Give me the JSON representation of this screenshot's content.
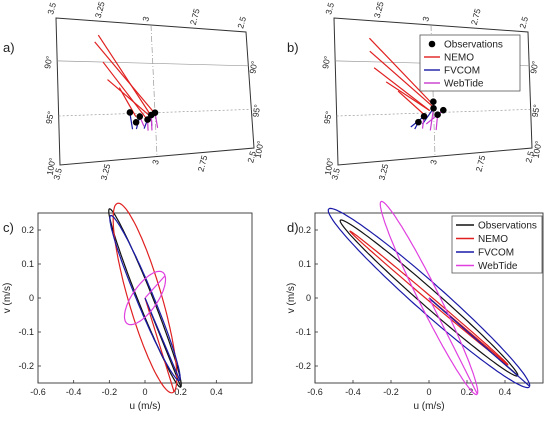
{
  "chart_data": [
    {
      "panel": "a)",
      "type": "line",
      "projection_ticks": {
        "top": [
          "3.5",
          "3.25",
          "3",
          "2.75",
          "2.5"
        ],
        "bottom": [
          "3.5",
          "3.25",
          "3",
          "2.75",
          "2.5"
        ],
        "left": [
          "90°",
          "95°",
          "100°"
        ],
        "right": [
          "90°",
          "95°",
          "100°"
        ]
      },
      "observations": [
        [
          3.13,
          95.9
        ],
        [
          3.08,
          96.3
        ],
        [
          3.04,
          96.6
        ],
        [
          3.02,
          96.2
        ],
        [
          3.0,
          96.0
        ],
        [
          3.1,
          96.8
        ]
      ],
      "series": [
        {
          "name": "NEMO",
          "color": "#e02020",
          "segments": [
            [
              [
                3.28,
                89.2
              ],
              [
                3.03,
                96.0
              ]
            ],
            [
              [
                3.3,
                89.8
              ],
              [
                3.0,
                96.1
              ]
            ],
            [
              [
                3.26,
                91.5
              ],
              [
                3.05,
                96.4
              ]
            ],
            [
              [
                3.24,
                93.0
              ],
              [
                3.02,
                96.4
              ]
            ],
            [
              [
                3.18,
                93.7
              ],
              [
                3.1,
                96.3
              ]
            ]
          ]
        },
        {
          "name": "FVCOM",
          "color": "#1a1aa8",
          "segments": [
            [
              [
                3.13,
                96.0
              ],
              [
                3.12,
                97.4
              ]
            ],
            [
              [
                3.08,
                96.3
              ],
              [
                3.1,
                97.4
              ]
            ],
            [
              [
                3.04,
                96.6
              ],
              [
                3.06,
                97.4
              ]
            ],
            [
              [
                3.02,
                96.2
              ],
              [
                3.02,
                97.2
              ]
            ]
          ]
        },
        {
          "name": "WebTide",
          "color": "#c83cd0",
          "segments": [
            [
              [
                3.0,
                96.0
              ],
              [
                2.99,
                97.4
              ]
            ],
            [
              [
                3.02,
                96.2
              ],
              [
                3.02,
                97.6
              ]
            ],
            [
              [
                3.04,
                96.6
              ],
              [
                3.04,
                97.6
              ]
            ],
            [
              [
                3.08,
                96.3
              ],
              [
                3.06,
                97.2
              ]
            ]
          ]
        }
      ]
    },
    {
      "panel": "b)",
      "type": "line",
      "projection_ticks": {
        "top": [
          "3.5",
          "3.25",
          "3",
          "2.75",
          "2.5"
        ],
        "bottom": [
          "3.5",
          "3.25",
          "3",
          "2.75",
          "2.5"
        ],
        "left": [
          "90°",
          "95°",
          "100°"
        ],
        "right": [
          "90°",
          "95°",
          "100°"
        ]
      },
      "legend": [
        "Observations",
        "NEMO",
        "FVCOM",
        "WebTide"
      ],
      "legend_position": "top-right",
      "observations": [
        [
          3.0,
          95.0
        ],
        [
          3.0,
          95.6
        ],
        [
          2.95,
          95.8
        ],
        [
          3.05,
          96.3
        ],
        [
          3.08,
          96.8
        ],
        [
          2.98,
          96.2
        ]
      ],
      "series": [
        {
          "name": "NEMO",
          "color": "#e02020",
          "segments": [
            [
              [
                3.32,
                89.5
              ],
              [
                3.0,
                95.3
              ]
            ],
            [
              [
                3.32,
                90.6
              ],
              [
                3.0,
                95.5
              ]
            ],
            [
              [
                3.3,
                92.0
              ],
              [
                3.02,
                95.8
              ]
            ],
            [
              [
                3.24,
                93.2
              ],
              [
                3.02,
                95.8
              ]
            ],
            [
              [
                3.18,
                94.0
              ],
              [
                3.04,
                96.3
              ]
            ]
          ]
        },
        {
          "name": "FVCOM",
          "color": "#1a1aa8",
          "segments": [
            [
              [
                3.05,
                96.3
              ],
              [
                3.12,
                97.2
              ]
            ],
            [
              [
                3.08,
                96.8
              ],
              [
                3.1,
                97.4
              ]
            ],
            [
              [
                3.0,
                95.6
              ],
              [
                3.06,
                97.0
              ]
            ]
          ]
        },
        {
          "name": "WebTide",
          "color": "#c83cd0",
          "segments": [
            [
              [
                2.98,
                96.2
              ],
              [
                2.99,
                97.6
              ]
            ],
            [
              [
                3.0,
                95.6
              ],
              [
                3.02,
                97.6
              ]
            ],
            [
              [
                3.05,
                96.3
              ],
              [
                3.06,
                97.4
              ]
            ],
            [
              [
                2.95,
                95.8
              ],
              [
                3.04,
                97.0
              ]
            ]
          ]
        }
      ]
    },
    {
      "panel": "c)",
      "type": "line",
      "xlabel": "u (m/s)",
      "ylabel": "v (m/s)",
      "xlim": [
        -0.6,
        0.6
      ],
      "ylim": [
        -0.25,
        0.25
      ],
      "xticks": [
        "-0.6",
        "-0.4",
        "-0.2",
        "0",
        "0.2",
        "0.4"
      ],
      "yticks": [
        "0.2",
        "0.1",
        "0",
        "-0.1",
        "-0.2"
      ],
      "series": [
        {
          "name": "Observations",
          "color": "#111111",
          "ellipse": {
            "cx": 0.0,
            "cy": 0.0,
            "a": 0.33,
            "b": 0.035,
            "angle_deg": -52.4
          }
        },
        {
          "name": "NEMO",
          "color": "#e02020",
          "ellipse": {
            "cx": 0.0,
            "cy": 0.0,
            "a": 0.32,
            "b": 0.085,
            "angle_deg": -59.4
          }
        },
        {
          "name": "FVCOM",
          "color": "#1a1aa8",
          "ellipse": {
            "cx": 0.0,
            "cy": 0.0,
            "a": 0.31,
            "b": 0.04,
            "angle_deg": -51.1
          }
        },
        {
          "name": "WebTide",
          "color": "#e040e0",
          "ellipse": {
            "cx": 0.0,
            "cy": 0.0,
            "a": 0.13,
            "b": 0.05,
            "angle_deg": 30.2
          }
        }
      ]
    },
    {
      "panel": "d)",
      "type": "line",
      "xlabel": "u (m/s)",
      "ylabel": "v (m/s)",
      "xlim": [
        -0.6,
        0.6
      ],
      "ylim": [
        -0.25,
        0.25
      ],
      "xticks": [
        "-0.6",
        "-0.4",
        "-0.2",
        "0",
        "0.2",
        "0.4"
      ],
      "yticks": [
        "0.2",
        "0.1",
        "0",
        "-0.1",
        "-0.2"
      ],
      "legend": [
        "Observations",
        "NEMO",
        "FVCOM",
        "WebTide"
      ],
      "legend_position": "top-right",
      "series": [
        {
          "name": "Observations",
          "color": "#111111",
          "ellipse": {
            "cx": 0.0,
            "cy": 0.0,
            "a": 0.52,
            "b": 0.03,
            "angle_deg": -26.0
          }
        },
        {
          "name": "NEMO",
          "color": "#e02020",
          "ellipse": {
            "cx": 0.0,
            "cy": 0.0,
            "a": 0.46,
            "b": 0.008,
            "angle_deg": -25.3
          }
        },
        {
          "name": "FVCOM",
          "color": "#1a1aa8",
          "ellipse": {
            "cx": 0.0,
            "cy": 0.0,
            "a": 0.59,
            "b": 0.05,
            "angle_deg": -26.1
          }
        },
        {
          "name": "WebTide",
          "color": "#e040e0",
          "ellipse": {
            "cx": 0.0,
            "cy": 0.0,
            "a": 0.38,
            "b": 0.045,
            "angle_deg": -48.0
          }
        }
      ]
    }
  ]
}
